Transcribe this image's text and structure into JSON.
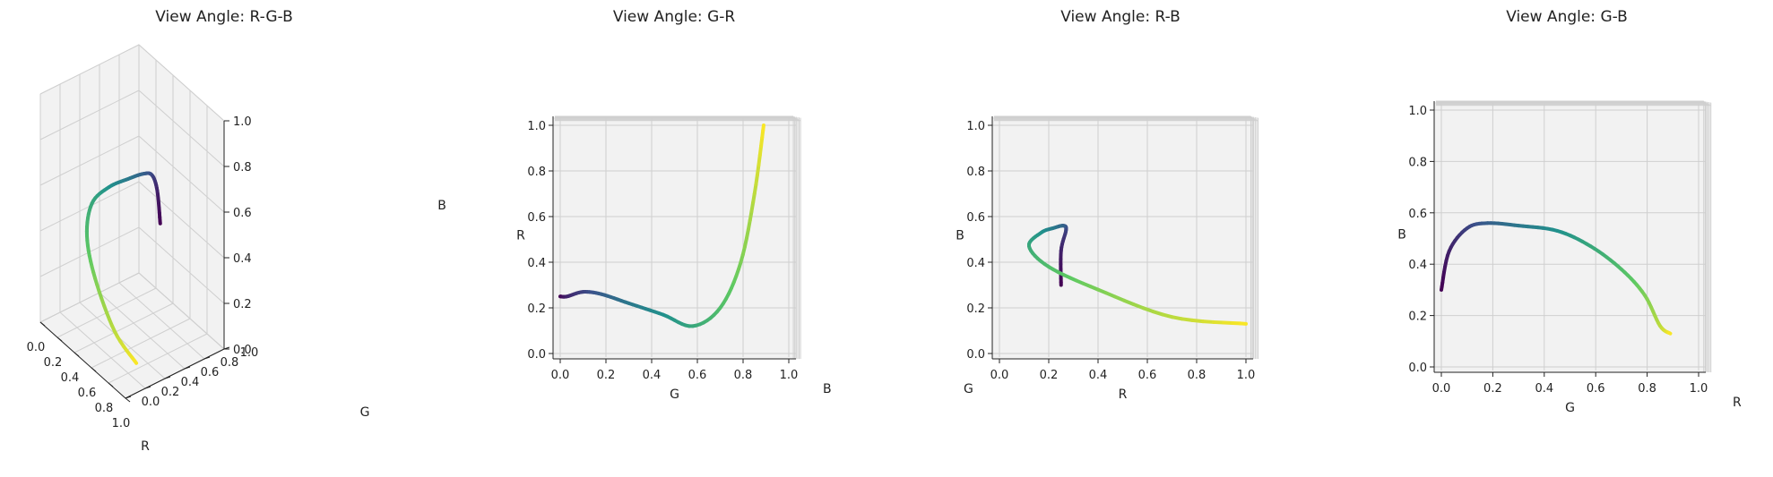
{
  "chart_data": [
    {
      "type": "line3d",
      "title": "View Angle: R-G-B",
      "axes": {
        "x_label": "R",
        "y_label": "G",
        "z_label": "B"
      },
      "xlim": [
        0,
        1
      ],
      "ylim": [
        0,
        1
      ],
      "zlim": [
        0,
        1
      ],
      "xticks": [
        "0.0",
        "0.2",
        "0.4",
        "0.6",
        "0.8",
        "1.0"
      ],
      "yticks": [
        "0.0",
        "0.2",
        "0.4",
        "0.6",
        "0.8",
        "1.0"
      ],
      "zticks": [
        "0.0",
        "0.2",
        "0.4",
        "0.6",
        "0.8",
        "1.0"
      ],
      "grid": true
    },
    {
      "type": "line3d",
      "title": "View Angle: G-R",
      "axes": {
        "x_label": "G",
        "y_label": "R",
        "depth_label": "B"
      },
      "xlim": [
        0,
        1
      ],
      "ylim": [
        0,
        1
      ],
      "xticks": [
        "0.0",
        "0.2",
        "0.4",
        "0.6",
        "0.8",
        "1.0"
      ],
      "yticks": [
        "0.0",
        "0.2",
        "0.4",
        "0.6",
        "0.8",
        "1.0"
      ],
      "grid": true
    },
    {
      "type": "line3d",
      "title": "View Angle: R-B",
      "axes": {
        "x_label": "R",
        "y_label": "B",
        "depth_label": "G"
      },
      "xlim": [
        0,
        1
      ],
      "ylim": [
        0,
        1
      ],
      "xticks": [
        "0.0",
        "0.2",
        "0.4",
        "0.6",
        "0.8",
        "1.0"
      ],
      "yticks": [
        "0.0",
        "0.2",
        "0.4",
        "0.6",
        "0.8",
        "1.0"
      ],
      "grid": true
    },
    {
      "type": "line3d",
      "title": "View Angle: G-B",
      "axes": {
        "x_label": "G",
        "y_label": "B",
        "depth_label": "R"
      },
      "xlim": [
        0,
        1
      ],
      "ylim": [
        0,
        1
      ],
      "xticks": [
        "0.0",
        "0.2",
        "0.4",
        "0.6",
        "0.8",
        "1.0"
      ],
      "yticks": [
        "0.0",
        "0.2",
        "0.4",
        "0.6",
        "0.8",
        "1.0"
      ],
      "grid": true
    }
  ],
  "curve": {
    "colormap": "viridis",
    "stops": [
      "#440154",
      "#3b528b",
      "#21918c",
      "#5ec962",
      "#fde725"
    ],
    "points": [
      {
        "t": 0.0,
        "R": 0.25,
        "G": 0.0,
        "B": 0.3
      },
      {
        "t": 0.1,
        "R": 0.25,
        "G": 0.03,
        "B": 0.45
      },
      {
        "t": 0.2,
        "R": 0.27,
        "G": 0.1,
        "B": 0.54
      },
      {
        "t": 0.3,
        "R": 0.26,
        "G": 0.18,
        "B": 0.56
      },
      {
        "t": 0.4,
        "R": 0.22,
        "G": 0.3,
        "B": 0.55
      },
      {
        "t": 0.5,
        "R": 0.17,
        "G": 0.45,
        "B": 0.53
      },
      {
        "t": 0.6,
        "R": 0.12,
        "G": 0.58,
        "B": 0.47
      },
      {
        "t": 0.7,
        "R": 0.2,
        "G": 0.7,
        "B": 0.38
      },
      {
        "t": 0.8,
        "R": 0.4,
        "G": 0.79,
        "B": 0.28
      },
      {
        "t": 0.9,
        "R": 0.7,
        "G": 0.85,
        "B": 0.16
      },
      {
        "t": 1.0,
        "R": 1.0,
        "G": 0.89,
        "B": 0.13
      }
    ]
  }
}
